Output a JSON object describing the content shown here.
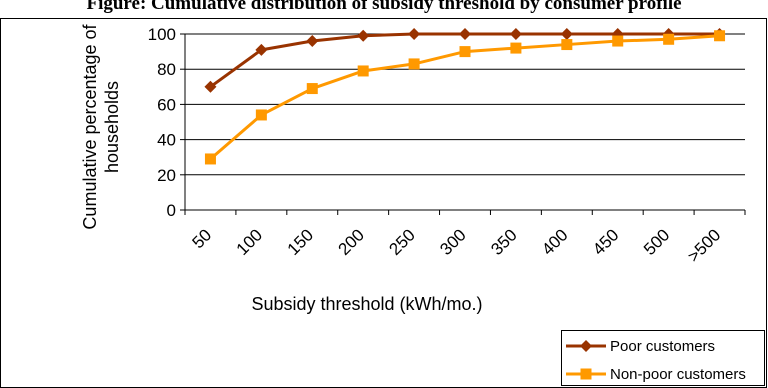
{
  "chart_data": {
    "type": "line",
    "title": "Figure: Cumulative distribution of subsidy threshold by consumer profile",
    "ylabel_line1": "Cumulative percentage of",
    "ylabel_line2": "households",
    "xlabel": "Subsidy threshold (kWh/mo.)",
    "categories": [
      "50",
      "100",
      "150",
      "200",
      "250",
      "300",
      "350",
      "400",
      "450",
      "500",
      ">500"
    ],
    "ylim": [
      0,
      100
    ],
    "yticks": [
      "0",
      "20",
      "40",
      "60",
      "80",
      "100"
    ],
    "grid": true,
    "legend_position": "bottom-right",
    "series": [
      {
        "name": "Poor customers",
        "color": "#993300",
        "marker": "diamond",
        "values": [
          70,
          91,
          96,
          99,
          100,
          100,
          100,
          100,
          100,
          100,
          100
        ]
      },
      {
        "name": "Non-poor customers",
        "color": "#ff9900",
        "marker": "square",
        "values": [
          29,
          54,
          69,
          79,
          83,
          90,
          92,
          94,
          96,
          97,
          99
        ]
      }
    ]
  }
}
